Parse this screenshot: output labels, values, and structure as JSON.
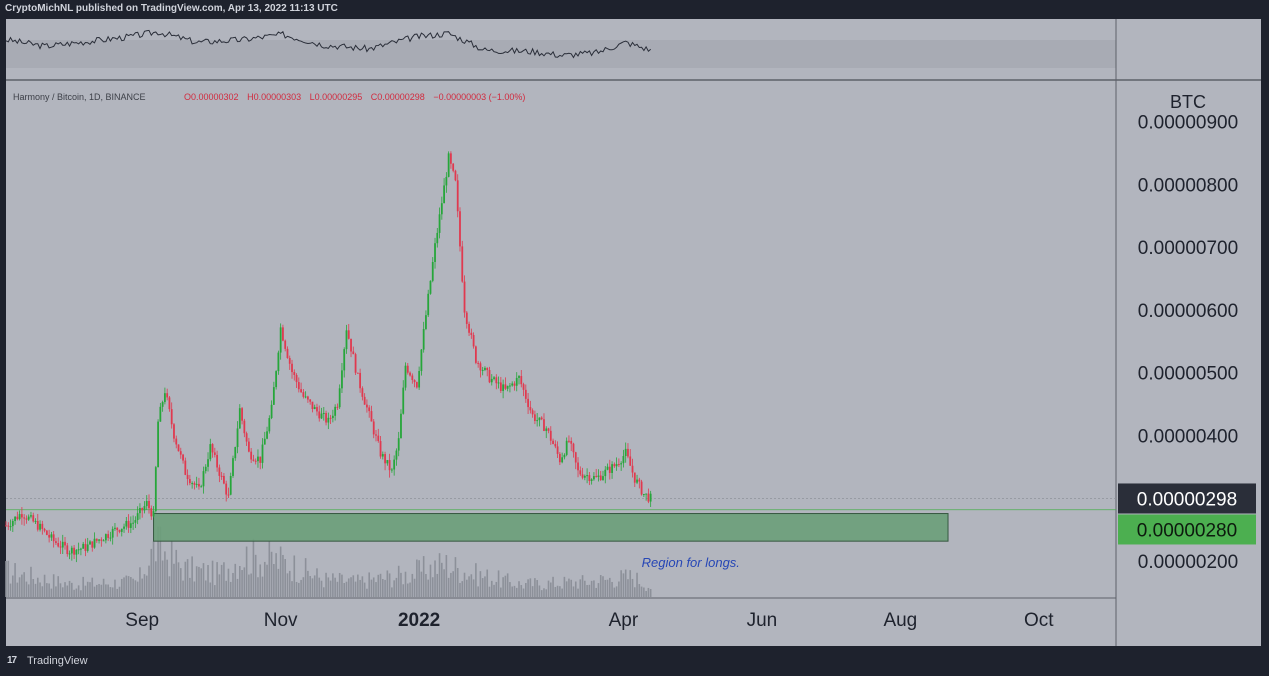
{
  "header": {
    "published_text": "CryptoMichNL published on TradingView.com, Apr 13, 2022 11:13 UTC"
  },
  "footer": {
    "logo_glyph": "17",
    "brand": "TradingView"
  },
  "colors": {
    "background": "#b2b5be",
    "up": "#26a63a",
    "down": "#e0394f",
    "volume": "#8c9099",
    "zone_fill": "#6a9e79",
    "current_price_badge": "#2a2e39",
    "support_badge": "#4caf50",
    "annotation": "#2747b6"
  },
  "chart_data": {
    "type": "candlestick",
    "symbol_line": {
      "pair": "Harmony / Bitcoin, 1D, BINANCE",
      "open": "O0.00000302",
      "high": "H0.00000303",
      "low": "L0.00000295",
      "close": "C0.00000298",
      "change": "−0.00000003 (−1.00%)"
    },
    "currency": "BTC",
    "y_axis": {
      "ticks": [
        "0.00000900",
        "0.00000800",
        "0.00000700",
        "0.00000600",
        "0.00000500",
        "0.00000400",
        "0.00000200"
      ],
      "tick_values": [
        9e-06,
        8e-06,
        7e-06,
        6e-06,
        5e-06,
        4e-06,
        2e-06
      ],
      "ylim": [
        2e-06,
        9.2e-06
      ]
    },
    "x_axis": {
      "ticks": [
        "Sep",
        "Nov",
        "2022",
        "Apr",
        "Jun",
        "Aug",
        "Oct"
      ],
      "tick_dates": [
        "2021-09-01",
        "2021-11-01",
        "2022-01-01",
        "2022-04-01",
        "2022-06-01",
        "2022-08-01",
        "2022-10-01"
      ],
      "range": [
        "2021-07-03",
        "2022-11-04"
      ]
    },
    "current_price": {
      "label": "0.00000298",
      "value": 2.98e-06
    },
    "support_line": {
      "label": "0.00000280",
      "value": 2.8e-06
    },
    "long_zone": {
      "y_top": 2.74e-06,
      "y_bottom": 2.3e-06,
      "x_start": "2021-09-06",
      "x_end": "2022-08-22",
      "label": "Region for longs."
    },
    "close_path": [
      [
        "2021-07-03",
        2.55e-06
      ],
      [
        "2021-07-10",
        2.75e-06
      ],
      [
        "2021-07-17",
        2.55e-06
      ],
      [
        "2021-07-24",
        2.3e-06
      ],
      [
        "2021-07-31",
        2.15e-06
      ],
      [
        "2021-08-07",
        2.2e-06
      ],
      [
        "2021-08-14",
        2.35e-06
      ],
      [
        "2021-08-21",
        2.5e-06
      ],
      [
        "2021-08-28",
        2.6e-06
      ],
      [
        "2021-09-03",
        2.9e-06
      ],
      [
        "2021-09-06",
        2.7e-06
      ],
      [
        "2021-09-08",
        4.2e-06
      ],
      [
        "2021-09-11",
        4.7e-06
      ],
      [
        "2021-09-15",
        4e-06
      ],
      [
        "2021-09-20",
        3.4e-06
      ],
      [
        "2021-09-26",
        3.1e-06
      ],
      [
        "2021-10-01",
        3.8e-06
      ],
      [
        "2021-10-05",
        3.4e-06
      ],
      [
        "2021-10-09",
        3e-06
      ],
      [
        "2021-10-14",
        4.4e-06
      ],
      [
        "2021-10-18",
        3.7e-06
      ],
      [
        "2021-10-23",
        3.6e-06
      ],
      [
        "2021-10-28",
        4.4e-06
      ],
      [
        "2021-11-01",
        5.7e-06
      ],
      [
        "2021-11-06",
        5e-06
      ],
      [
        "2021-11-11",
        4.6e-06
      ],
      [
        "2021-11-16",
        4.4e-06
      ],
      [
        "2021-11-22",
        4.2e-06
      ],
      [
        "2021-11-26",
        4.5e-06
      ],
      [
        "2021-11-30",
        5.7e-06
      ],
      [
        "2021-12-05",
        4.9e-06
      ],
      [
        "2021-12-10",
        4.3e-06
      ],
      [
        "2021-12-15",
        3.7e-06
      ],
      [
        "2021-12-20",
        3.4e-06
      ],
      [
        "2021-12-23",
        3.9e-06
      ],
      [
        "2021-12-26",
        5.1e-06
      ],
      [
        "2021-12-31",
        4.8e-06
      ],
      [
        "2022-01-04",
        5.9e-06
      ],
      [
        "2022-01-08",
        7e-06
      ],
      [
        "2022-01-11",
        7.7e-06
      ],
      [
        "2022-01-14",
        8.4e-06
      ],
      [
        "2022-01-17",
        8e-06
      ],
      [
        "2022-01-21",
        6e-06
      ],
      [
        "2022-01-26",
        5.2e-06
      ],
      [
        "2022-02-01",
        4.9e-06
      ],
      [
        "2022-02-08",
        4.7e-06
      ],
      [
        "2022-02-14",
        4.9e-06
      ],
      [
        "2022-02-20",
        4.3e-06
      ],
      [
        "2022-02-26",
        4.1e-06
      ],
      [
        "2022-03-04",
        3.6e-06
      ],
      [
        "2022-03-08",
        3.9e-06
      ],
      [
        "2022-03-12",
        3.4e-06
      ],
      [
        "2022-03-20",
        3.3e-06
      ],
      [
        "2022-03-28",
        3.5e-06
      ],
      [
        "2022-04-02",
        3.7e-06
      ],
      [
        "2022-04-06",
        3.3e-06
      ],
      [
        "2022-04-10",
        3.05e-06
      ],
      [
        "2022-04-13",
        2.98e-06
      ]
    ],
    "volume_path": [
      [
        "2021-07-03",
        0.5
      ],
      [
        "2021-08-01",
        0.25
      ],
      [
        "2021-08-30",
        0.3
      ],
      [
        "2021-09-07",
        1.0
      ],
      [
        "2021-09-20",
        0.55
      ],
      [
        "2021-10-05",
        0.45
      ],
      [
        "2021-10-15",
        0.8
      ],
      [
        "2021-11-02",
        0.7
      ],
      [
        "2021-11-20",
        0.35
      ],
      [
        "2021-12-05",
        0.3
      ],
      [
        "2021-12-28",
        0.45
      ],
      [
        "2022-01-12",
        0.65
      ],
      [
        "2022-01-25",
        0.45
      ],
      [
        "2022-02-15",
        0.25
      ],
      [
        "2022-03-15",
        0.3
      ],
      [
        "2022-04-05",
        0.4
      ],
      [
        "2022-04-13",
        0.2
      ]
    ],
    "oscillator_path": [
      [
        "2021-07-03",
        0.55
      ],
      [
        "2021-07-20",
        0.3
      ],
      [
        "2021-08-10",
        0.5
      ],
      [
        "2021-08-25",
        0.65
      ],
      [
        "2021-09-08",
        0.85
      ],
      [
        "2021-09-25",
        0.45
      ],
      [
        "2021-10-15",
        0.55
      ],
      [
        "2021-11-02",
        0.75
      ],
      [
        "2021-11-20",
        0.35
      ],
      [
        "2021-12-10",
        0.2
      ],
      [
        "2021-12-30",
        0.65
      ],
      [
        "2022-01-14",
        0.8
      ],
      [
        "2022-01-30",
        0.15
      ],
      [
        "2022-02-20",
        0.1
      ],
      [
        "2022-03-05",
        -0.05
      ],
      [
        "2022-03-20",
        0.05
      ],
      [
        "2022-04-02",
        0.45
      ],
      [
        "2022-04-13",
        0.15
      ]
    ]
  }
}
